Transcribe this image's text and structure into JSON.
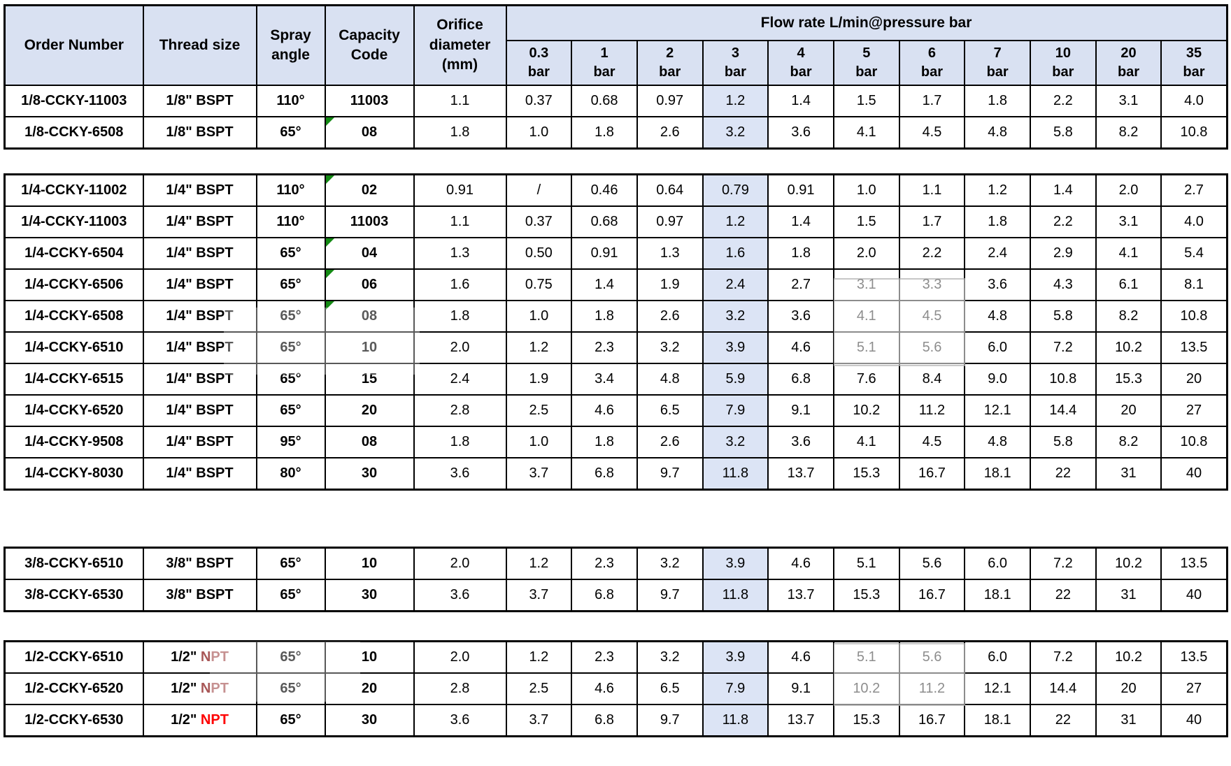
{
  "page": {
    "background": "#ffffff"
  },
  "colors": {
    "header_bg": "#d9e1f2",
    "highlight_column_bg": "#dce4f5",
    "border": "#000000",
    "error_flag_green": "#148a14",
    "npt_red_bright": "#fe0000",
    "npt_red_faded": "#9a3a3a"
  },
  "header": {
    "order_number": "Order Number",
    "thread_size": "Thread size",
    "spray_angle": [
      "Spray",
      "angle"
    ],
    "capacity_code": [
      "Capacity",
      "Code"
    ],
    "orifice_diameter": [
      "Orifice",
      "diameter",
      "(mm)"
    ],
    "flow_rate_title": "Flow rate L/min@pressure bar",
    "pressure_unit": "bar",
    "pressures": [
      "0.3",
      "1",
      "2",
      "3",
      "4",
      "5",
      "6",
      "7",
      "10",
      "20",
      "35"
    ],
    "highlighted_pressure_index": 3
  },
  "tables": [
    {
      "id": "bspt-1-8-inch",
      "left_column_row_dividers": false,
      "rows": [
        {
          "order_number": "1/8-CCKY-11003",
          "thread_size": "1/8\" BSPT",
          "spray_angle": "110°",
          "capacity_code": "11003",
          "code_error_flag": false,
          "orifice_diameter": "1.1",
          "flow_rates": [
            "0.37",
            "0.68",
            "0.97",
            "1.2",
            "1.4",
            "1.5",
            "1.7",
            "1.8",
            "2.2",
            "3.1",
            "4.0"
          ]
        },
        {
          "order_number": "1/8-CCKY-6508",
          "thread_size": "1/8\" BSPT",
          "spray_angle": "65°",
          "capacity_code": "08",
          "code_error_flag": true,
          "orifice_diameter": "1.8",
          "flow_rates": [
            "1.0",
            "1.8",
            "2.6",
            "3.2",
            "3.6",
            "4.1",
            "4.5",
            "4.8",
            "5.8",
            "8.2",
            "10.8"
          ]
        }
      ]
    },
    {
      "id": "bspt-1-4-inch",
      "left_column_row_dividers": false,
      "rows": [
        {
          "order_number": "1/4-CCKY-11002",
          "thread_size": "1/4\" BSPT",
          "spray_angle": "110°",
          "capacity_code": "02",
          "code_error_flag": true,
          "orifice_diameter": "0.91",
          "flow_rates": [
            "/",
            "0.46",
            "0.64",
            "0.79",
            "0.91",
            "1.0",
            "1.1",
            "1.2",
            "1.4",
            "2.0",
            "2.7"
          ]
        },
        {
          "order_number": "1/4-CCKY-11003",
          "thread_size": "1/4\" BSPT",
          "spray_angle": "110°",
          "capacity_code": "11003",
          "code_error_flag": false,
          "orifice_diameter": "1.1",
          "flow_rates": [
            "0.37",
            "0.68",
            "0.97",
            "1.2",
            "1.4",
            "1.5",
            "1.7",
            "1.8",
            "2.2",
            "3.1",
            "4.0"
          ]
        },
        {
          "order_number": "1/4-CCKY-6504",
          "thread_size": "1/4\" BSPT",
          "spray_angle": "65°",
          "capacity_code": "04",
          "code_error_flag": true,
          "orifice_diameter": "1.3",
          "flow_rates": [
            "0.50",
            "0.91",
            "1.3",
            "1.6",
            "1.8",
            "2.0",
            "2.2",
            "2.4",
            "2.9",
            "4.1",
            "5.4"
          ]
        },
        {
          "order_number": "1/4-CCKY-6506",
          "thread_size": "1/4\" BSPT",
          "spray_angle": "65°",
          "capacity_code": "06",
          "code_error_flag": true,
          "orifice_diameter": "1.6",
          "flow_rates": [
            "0.75",
            "1.4",
            "1.9",
            "2.4",
            "2.7",
            "3.1",
            "3.3",
            "3.6",
            "4.3",
            "6.1",
            "8.1"
          ]
        },
        {
          "order_number": "1/4-CCKY-6508",
          "thread_size": "1/4\" BSPT",
          "spray_angle": "65°",
          "capacity_code": "08",
          "code_error_flag": true,
          "orifice_diameter": "1.8",
          "flow_rates": [
            "1.0",
            "1.8",
            "2.6",
            "3.2",
            "3.6",
            "4.1",
            "4.5",
            "4.8",
            "5.8",
            "8.2",
            "10.8"
          ]
        },
        {
          "order_number": "1/4-CCKY-6510",
          "thread_size": "1/4\" BSPT",
          "spray_angle": "65°",
          "capacity_code": "10",
          "code_error_flag": false,
          "orifice_diameter": "2.0",
          "flow_rates": [
            "1.2",
            "2.3",
            "3.2",
            "3.9",
            "4.6",
            "5.1",
            "5.6",
            "6.0",
            "7.2",
            "10.2",
            "13.5"
          ]
        },
        {
          "order_number": "1/4-CCKY-6515",
          "thread_size": "1/4\" BSPT",
          "spray_angle": "65°",
          "capacity_code": "15",
          "code_error_flag": false,
          "orifice_diameter": "2.4",
          "flow_rates": [
            "1.9",
            "3.4",
            "4.8",
            "5.9",
            "6.8",
            "7.6",
            "8.4",
            "9.0",
            "10.8",
            "15.3",
            "20"
          ]
        },
        {
          "order_number": "1/4-CCKY-6520",
          "thread_size": "1/4\" BSPT",
          "spray_angle": "65°",
          "capacity_code": "20",
          "code_error_flag": false,
          "orifice_diameter": "2.8",
          "flow_rates": [
            "2.5",
            "4.6",
            "6.5",
            "7.9",
            "9.1",
            "10.2",
            "11.2",
            "12.1",
            "14.4",
            "20",
            "27"
          ]
        },
        {
          "order_number": "1/4-CCKY-9508",
          "thread_size": "1/4\" BSPT",
          "spray_angle": "95°",
          "capacity_code": "08",
          "code_error_flag": false,
          "orifice_diameter": "1.8",
          "flow_rates": [
            "1.0",
            "1.8",
            "2.6",
            "3.2",
            "3.6",
            "4.1",
            "4.5",
            "4.8",
            "5.8",
            "8.2",
            "10.8"
          ]
        },
        {
          "order_number": "1/4-CCKY-8030",
          "thread_size": "1/4\" BSPT",
          "spray_angle": "80°",
          "capacity_code": "30",
          "code_error_flag": false,
          "orifice_diameter": "3.6",
          "flow_rates": [
            "3.7",
            "6.8",
            "9.7",
            "11.8",
            "13.7",
            "15.3",
            "16.7",
            "18.1",
            "22",
            "31",
            "40"
          ]
        }
      ]
    },
    {
      "id": "bspt-3-8-inch",
      "left_column_row_dividers": false,
      "rows": [
        {
          "order_number": "3/8-CCKY-6510",
          "thread_size": "3/8\" BSPT",
          "spray_angle": "65°",
          "capacity_code": "10",
          "code_error_flag": false,
          "orifice_diameter": "2.0",
          "flow_rates": [
            "1.2",
            "2.3",
            "3.2",
            "3.9",
            "4.6",
            "5.1",
            "5.6",
            "6.0",
            "7.2",
            "10.2",
            "13.5"
          ]
        },
        {
          "order_number": "3/8-CCKY-6530",
          "thread_size": "3/8\" BSPT",
          "spray_angle": "65°",
          "capacity_code": "30",
          "code_error_flag": false,
          "orifice_diameter": "3.6",
          "flow_rates": [
            "3.7",
            "6.8",
            "9.7",
            "11.8",
            "13.7",
            "15.3",
            "16.7",
            "18.1",
            "22",
            "31",
            "40"
          ]
        }
      ]
    },
    {
      "id": "npt-1-2-inch",
      "left_column_row_dividers": true,
      "rows": [
        {
          "order_number": "1/2-CCKY-6510",
          "thread_size": "1/2\"",
          "thread_red_part": "NPT",
          "thread_red_style": "faded",
          "spray_angle": "65°",
          "capacity_code": "10",
          "code_error_flag": false,
          "orifice_diameter": "2.0",
          "flow_rates": [
            "1.2",
            "2.3",
            "3.2",
            "3.9",
            "4.6",
            "5.1",
            "5.6",
            "6.0",
            "7.2",
            "10.2",
            "13.5"
          ]
        },
        {
          "order_number": "1/2-CCKY-6520",
          "thread_size": "1/2\"",
          "thread_red_part": "NPT",
          "thread_red_style": "faded",
          "spray_angle": "65°",
          "capacity_code": "20",
          "code_error_flag": false,
          "orifice_diameter": "2.8",
          "flow_rates": [
            "2.5",
            "4.6",
            "6.5",
            "7.9",
            "9.1",
            "10.2",
            "11.2",
            "12.1",
            "14.4",
            "20",
            "27"
          ]
        },
        {
          "order_number": "1/2-CCKY-6530",
          "thread_size": "1/2\"",
          "thread_red_part": "NPT",
          "thread_red_style": "bright",
          "spray_angle": "65°",
          "capacity_code": "30",
          "code_error_flag": false,
          "orifice_diameter": "3.6",
          "flow_rates": [
            "3.7",
            "6.8",
            "9.7",
            "11.8",
            "13.7",
            "15.3",
            "16.7",
            "18.1",
            "22",
            "31",
            "40"
          ]
        }
      ]
    }
  ]
}
